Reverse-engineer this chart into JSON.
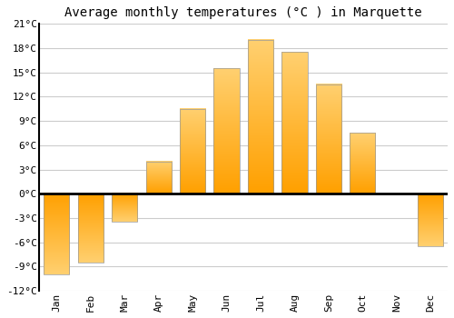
{
  "title": "Average monthly temperatures (°C ) in Marquette",
  "months": [
    "Jan",
    "Feb",
    "Mar",
    "Apr",
    "May",
    "Jun",
    "Jul",
    "Aug",
    "Sep",
    "Oct",
    "Nov",
    "Dec"
  ],
  "values": [
    -10.0,
    -8.5,
    -3.5,
    4.0,
    10.5,
    15.5,
    19.0,
    17.5,
    13.5,
    7.5,
    0.0,
    -6.5
  ],
  "bar_color": "#FFB020",
  "bar_edge_color": "#999999",
  "ylim": [
    -12,
    21
  ],
  "yticks": [
    -12,
    -9,
    -6,
    -3,
    0,
    3,
    6,
    9,
    12,
    15,
    18,
    21
  ],
  "ytick_labels": [
    "-12°C",
    "-9°C",
    "-6°C",
    "-3°C",
    "0°C",
    "3°C",
    "6°C",
    "9°C",
    "12°C",
    "15°C",
    "18°C",
    "21°C"
  ],
  "background_color": "#ffffff",
  "plot_bg_color": "#ffffff",
  "grid_color": "#cccccc",
  "title_fontsize": 10,
  "tick_fontsize": 8,
  "font_family": "monospace"
}
